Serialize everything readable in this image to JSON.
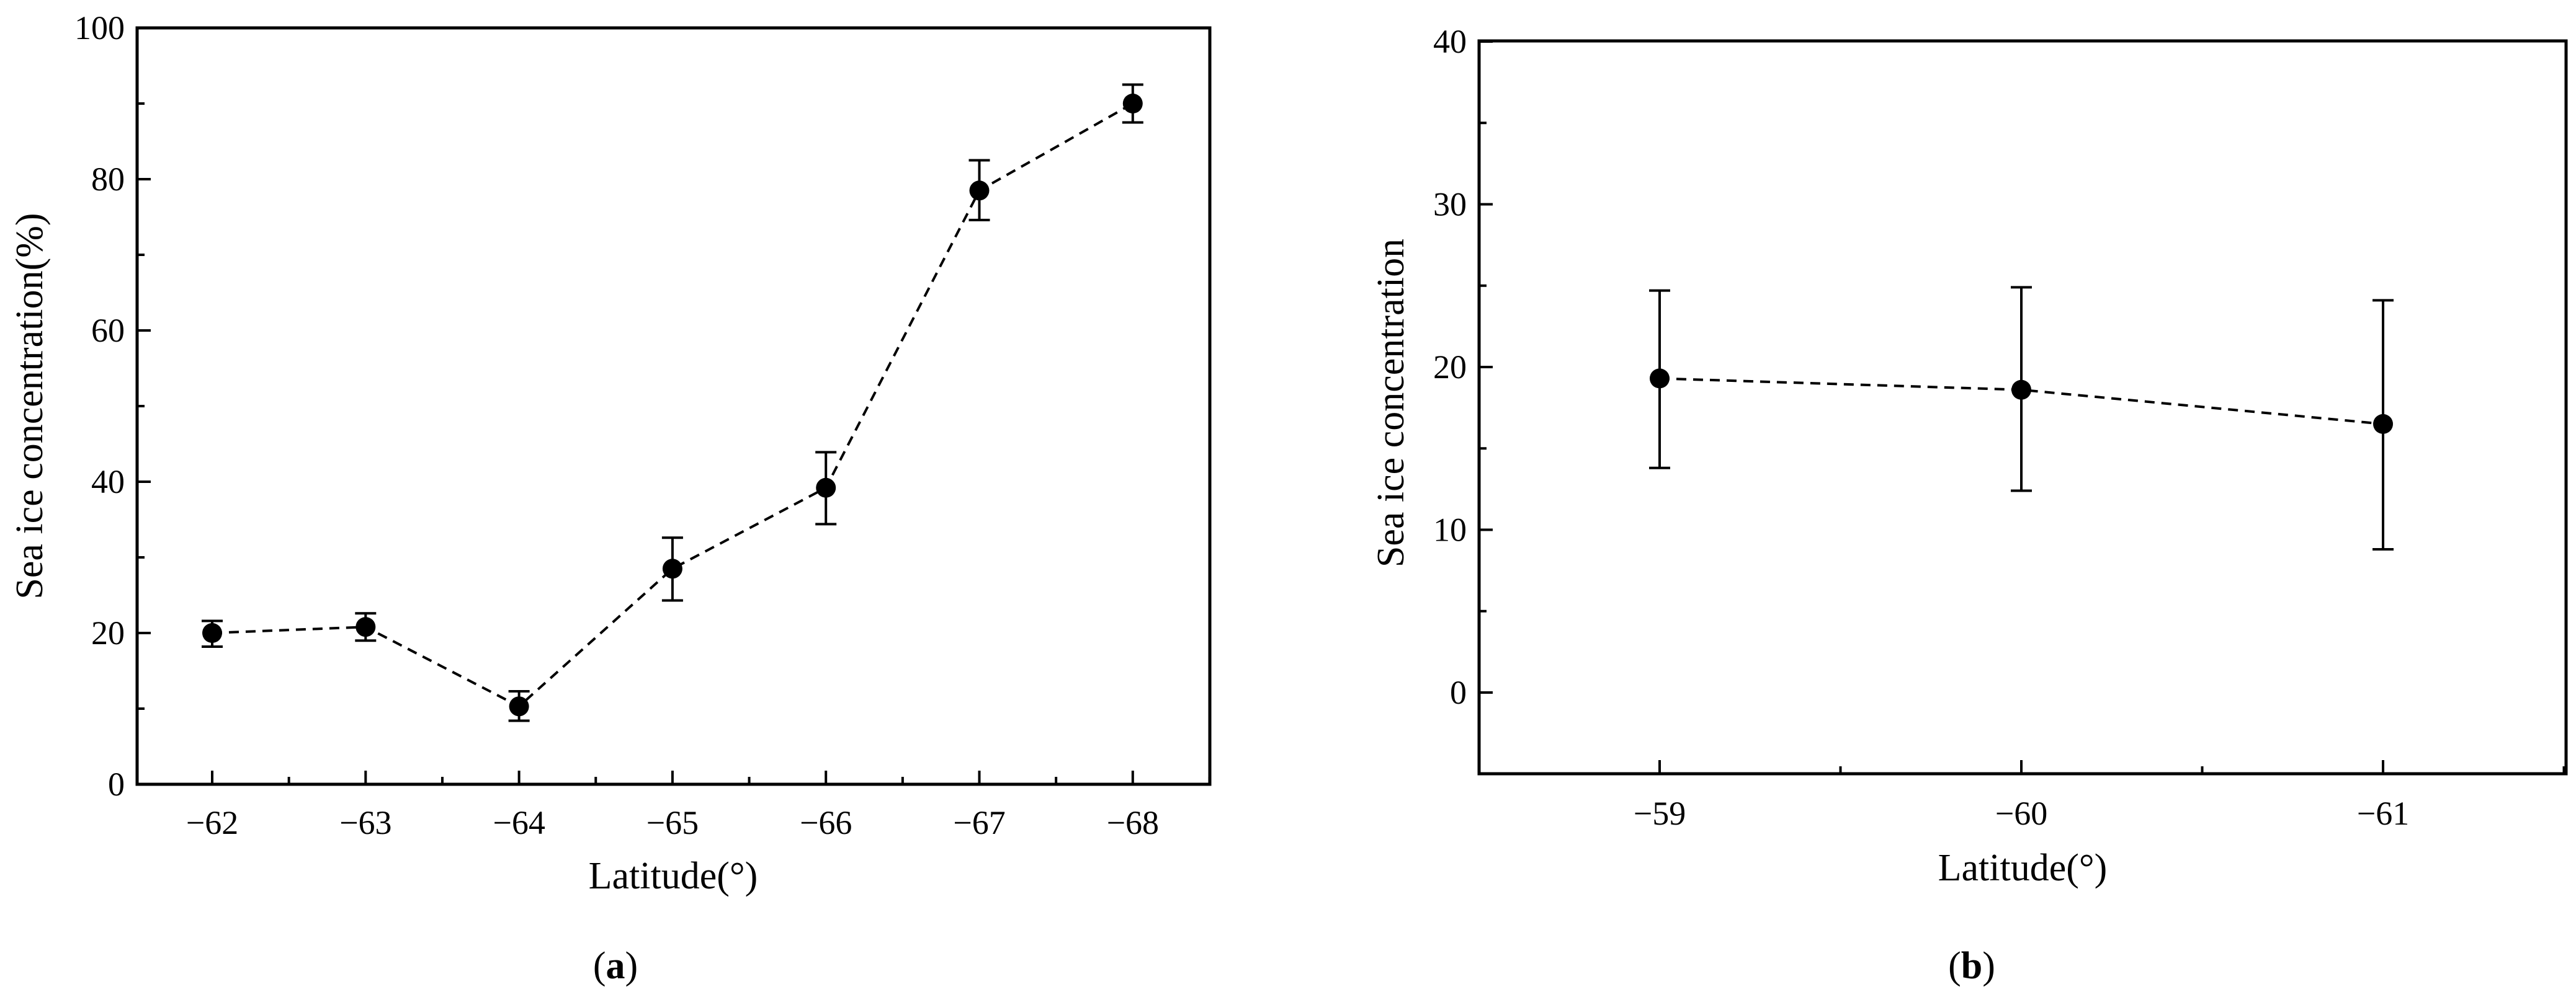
{
  "chart_data": [
    {
      "type": "line",
      "panel_label": "a",
      "xlabel": "Latitude(°)",
      "ylabel": "Sea ice concentration(%)",
      "x_ticks": [
        "−62",
        "−63",
        "−64",
        "−65",
        "−66",
        "−67",
        "−68"
      ],
      "y_ticks": [
        "0",
        "20",
        "40",
        "60",
        "80",
        "100"
      ],
      "ylim": [
        0,
        100
      ],
      "x_reversed": true,
      "line_style": "dashed",
      "marker": "filled-circle",
      "error_bars": true,
      "points": [
        {
          "x": -62,
          "y": 20.0,
          "err_low": 18.2,
          "err_high": 21.6
        },
        {
          "x": -63,
          "y": 20.8,
          "err_low": 19.0,
          "err_high": 22.6
        },
        {
          "x": -64,
          "y": 10.3,
          "err_low": 8.4,
          "err_high": 12.3
        },
        {
          "x": -65,
          "y": 28.5,
          "err_low": 24.3,
          "err_high": 32.6
        },
        {
          "x": -66,
          "y": 39.2,
          "err_low": 34.4,
          "err_high": 43.9
        },
        {
          "x": -67,
          "y": 78.5,
          "err_low": 74.6,
          "err_high": 82.5
        },
        {
          "x": -68,
          "y": 90.0,
          "err_low": 87.5,
          "err_high": 92.5
        }
      ]
    },
    {
      "type": "line",
      "panel_label": "b",
      "xlabel": "Latitude(°)",
      "ylabel": "Sea ice concentration",
      "x_ticks": [
        "−59",
        "−60",
        "−61"
      ],
      "y_ticks": [
        "0",
        "10",
        "20",
        "30",
        "40"
      ],
      "ylim": [
        -5,
        40
      ],
      "x_reversed": true,
      "line_style": "dashed",
      "marker": "filled-circle",
      "error_bars": true,
      "points": [
        {
          "x": -59,
          "y": 19.3,
          "err_low": 13.8,
          "err_high": 24.7
        },
        {
          "x": -60,
          "y": 18.6,
          "err_low": 12.4,
          "err_high": 24.9
        },
        {
          "x": -61,
          "y": 16.5,
          "err_low": 8.8,
          "err_high": 24.1
        }
      ]
    }
  ]
}
